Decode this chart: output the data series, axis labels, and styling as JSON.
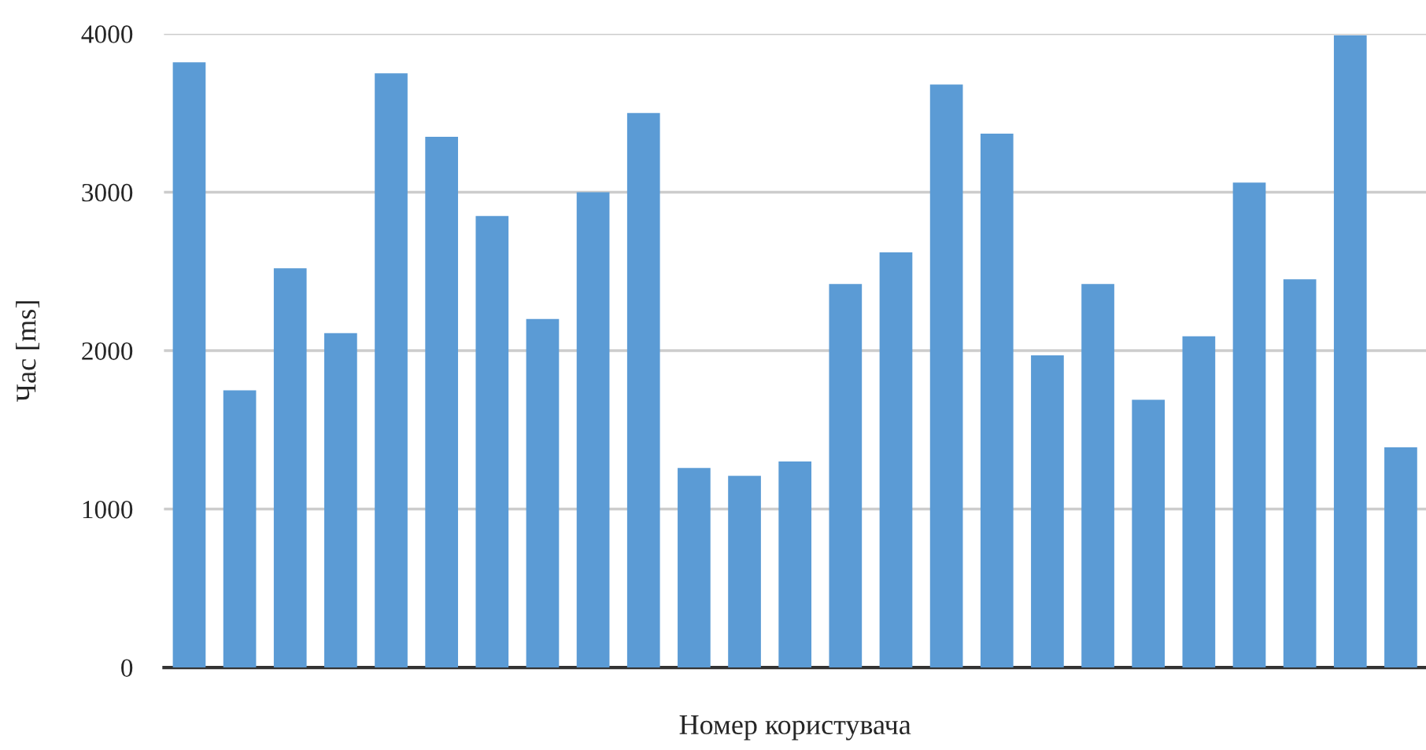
{
  "chart_data": {
    "type": "bar",
    "xlabel": "Номер користувача",
    "ylabel": "Час [ms]",
    "categories": [
      null,
      null,
      null,
      null,
      null,
      null,
      null,
      null,
      null,
      null,
      null,
      null,
      null,
      null,
      null,
      null,
      null,
      null,
      null,
      null,
      null,
      null,
      null,
      null,
      null
    ],
    "values": [
      3820,
      1750,
      2520,
      2110,
      3750,
      3350,
      2850,
      2200,
      3000,
      3500,
      1260,
      1210,
      1300,
      2420,
      2620,
      3680,
      3370,
      1970,
      2420,
      1690,
      2090,
      3060,
      2450,
      3990,
      1390
    ],
    "color": "#5b9bd5",
    "ylim": [
      0,
      4000
    ],
    "yticks": [
      0,
      1000,
      2000,
      3000,
      4000
    ],
    "grid": "y"
  }
}
